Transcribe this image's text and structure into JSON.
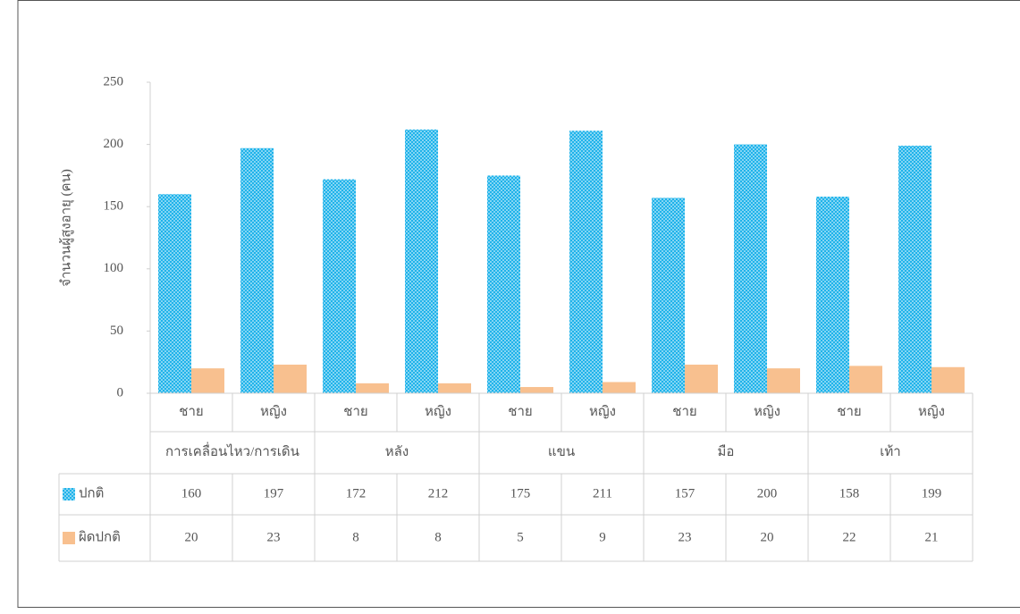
{
  "chart_data": {
    "type": "bar",
    "y_label": "จำนวนผู้สูงอายุ (คน)",
    "categories": [
      "ชาย",
      "หญิง",
      "ชาย",
      "หญิง",
      "ชาย",
      "หญิง",
      "ชาย",
      "หญิง",
      "ชาย",
      "หญิง"
    ],
    "groups": [
      "การเคลื่อนไหว/การเดิน",
      "หลัง",
      "แขน",
      "มือ",
      "เท้า"
    ],
    "series": [
      {
        "name": "ปกติ",
        "color": "#1fb3ea",
        "values": [
          160,
          197,
          172,
          212,
          175,
          211,
          157,
          200,
          158,
          199
        ]
      },
      {
        "name": "ผิดปกติ",
        "color": "#f8c08f",
        "values": [
          20,
          23,
          8,
          8,
          5,
          9,
          23,
          20,
          22,
          21
        ]
      }
    ],
    "ylim": [
      0,
      250
    ],
    "yticks": [
      0,
      50,
      100,
      150,
      200,
      250
    ],
    "data_table": true
  }
}
